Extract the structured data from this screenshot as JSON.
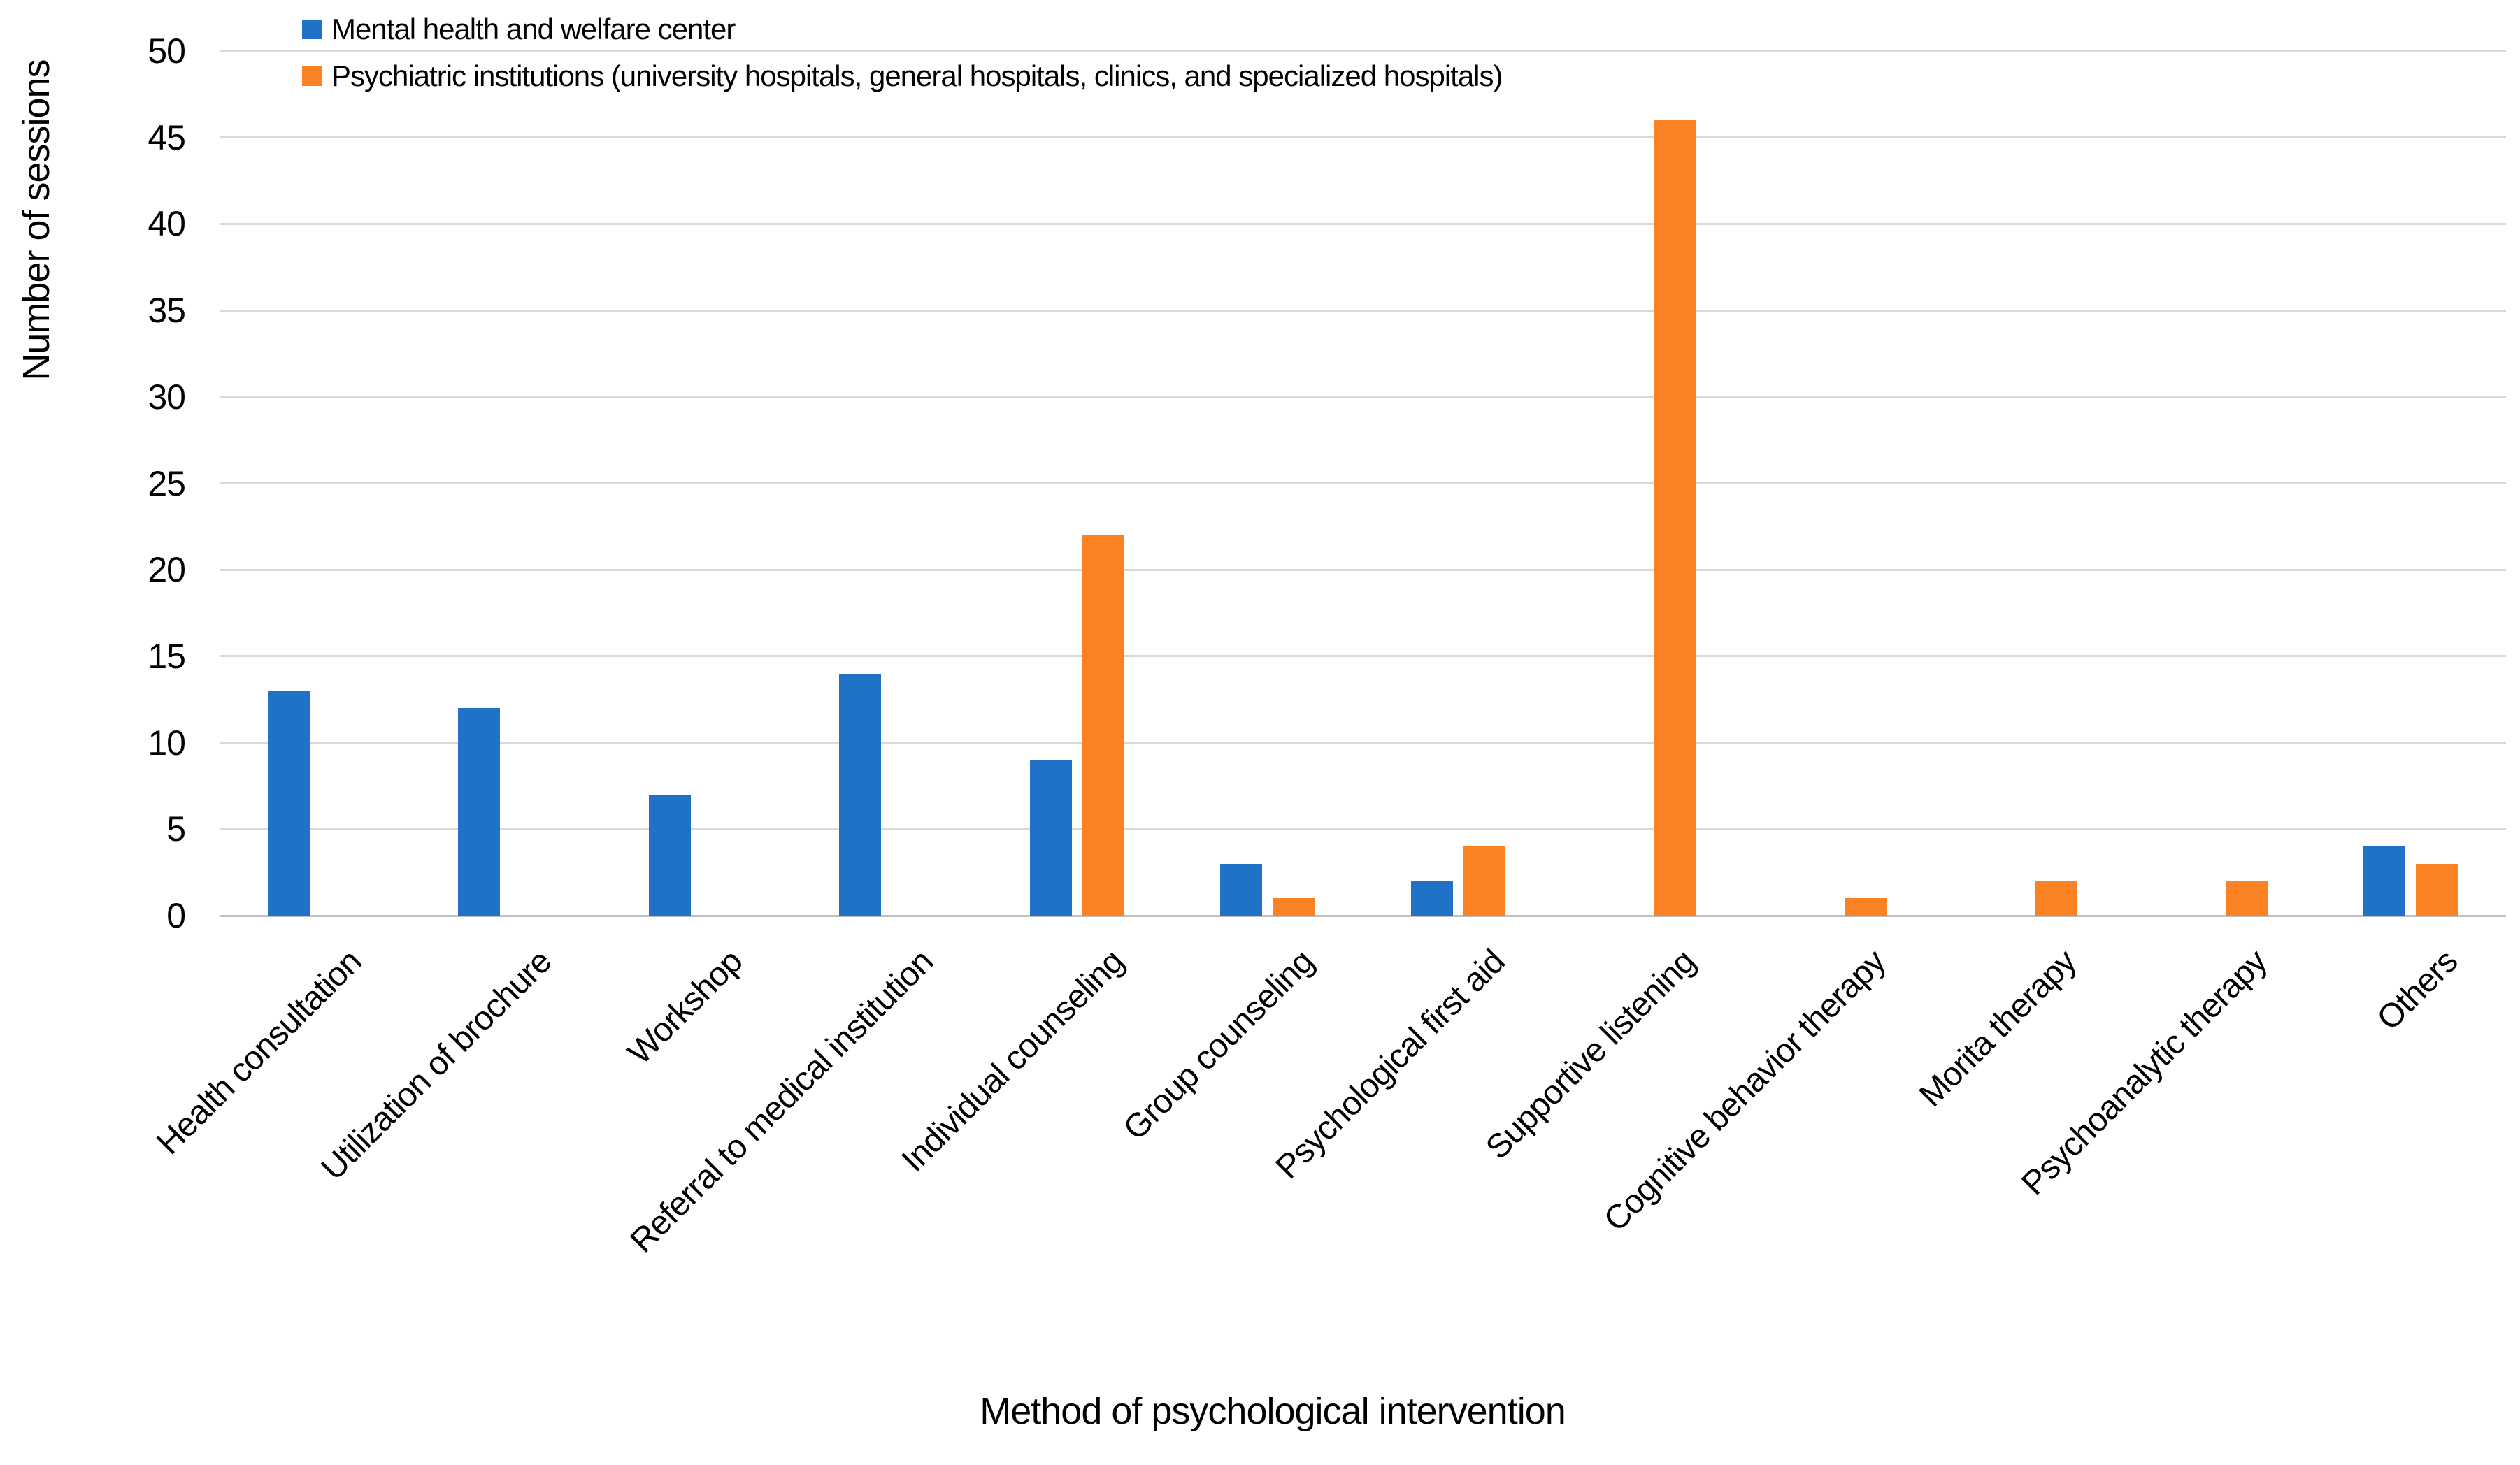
{
  "chart_data": {
    "type": "bar",
    "bar_layout": "grouped",
    "title": "",
    "xlabel": "Method of psychological intervention",
    "ylabel": "Number of sessions",
    "ylim": [
      0,
      50
    ],
    "yticks": [
      0,
      5,
      10,
      15,
      20,
      25,
      30,
      35,
      40,
      45,
      50
    ],
    "grid": true,
    "legend_position": "top-left",
    "categories": [
      "Health consultation",
      "Utilization of brochure",
      "Workshop",
      "Referral to medical institution",
      "Individual counseling",
      "Group counseling",
      "Psychological first aid",
      "Supportive listening",
      "Cognitive behavior therapy",
      "Morita therapy",
      "Psychoanalytic therapy",
      "Others"
    ],
    "series": [
      {
        "name": "Mental health and welfare center",
        "color": "#1F72C7",
        "values": [
          13,
          12,
          7,
          14,
          9,
          3,
          2,
          0,
          0,
          0,
          0,
          4
        ]
      },
      {
        "name": "Psychiatric institutions (university hospitals, general hospitals, clinics, and specialized hospitals)",
        "color": "#FB8125",
        "values": [
          0,
          0,
          0,
          0,
          22,
          1,
          4,
          46,
          1,
          2,
          2,
          3
        ]
      }
    ]
  },
  "colors": {
    "gridline": "#D9D9D9",
    "axis_line": "#C0C0C0",
    "text": "#000000",
    "background": "#FFFFFF"
  }
}
